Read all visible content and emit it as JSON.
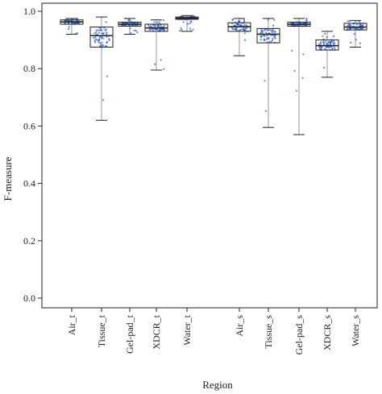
{
  "chart_data": {
    "type": "box",
    "xlabel": "Region",
    "ylabel": "F-measure",
    "ylim": [
      0.0,
      1.0
    ],
    "yticks": [
      "0.0",
      "0.2",
      "0.4",
      "0.6",
      "0.8",
      "1.0"
    ],
    "grid": false,
    "categories": [
      "Air_t",
      "Tissue_t",
      "Gel-pad_t",
      "XDCR_t",
      "Water_t",
      "Air_s",
      "Tissue_s",
      "Gel-pad_s",
      "XDCR_s",
      "Water_s"
    ],
    "boxes": [
      {
        "label": "Air_t",
        "min": 0.92,
        "q1": 0.955,
        "median": 0.963,
        "q3": 0.97,
        "max": 0.975
      },
      {
        "label": "Tissue_t",
        "min": 0.62,
        "q1": 0.875,
        "median": 0.915,
        "q3": 0.945,
        "max": 0.98
      },
      {
        "label": "Gel-pad_t",
        "min": 0.92,
        "q1": 0.948,
        "median": 0.955,
        "q3": 0.962,
        "max": 0.975
      },
      {
        "label": "XDCR_t",
        "min": 0.795,
        "q1": 0.93,
        "median": 0.942,
        "q3": 0.955,
        "max": 0.97
      },
      {
        "label": "Water_t",
        "min": 0.93,
        "q1": 0.972,
        "median": 0.976,
        "q3": 0.98,
        "max": 0.985
      },
      {
        "label": "Air_s",
        "min": 0.845,
        "q1": 0.93,
        "median": 0.946,
        "q3": 0.96,
        "max": 0.975
      },
      {
        "label": "Tissue_s",
        "min": 0.595,
        "q1": 0.89,
        "median": 0.92,
        "q3": 0.94,
        "max": 0.975
      },
      {
        "label": "Gel-pad_s",
        "min": 0.57,
        "q1": 0.948,
        "median": 0.955,
        "q3": 0.962,
        "max": 0.975
      },
      {
        "label": "XDCR_s",
        "min": 0.77,
        "q1": 0.865,
        "median": 0.88,
        "q3": 0.9,
        "max": 0.93
      },
      {
        "label": "Water_s",
        "min": 0.875,
        "q1": 0.935,
        "median": 0.945,
        "q3": 0.958,
        "max": 0.968
      }
    ]
  },
  "colors": {
    "points": "#2f5fd0",
    "box_stroke": "#222222",
    "whisker": "#999999"
  }
}
